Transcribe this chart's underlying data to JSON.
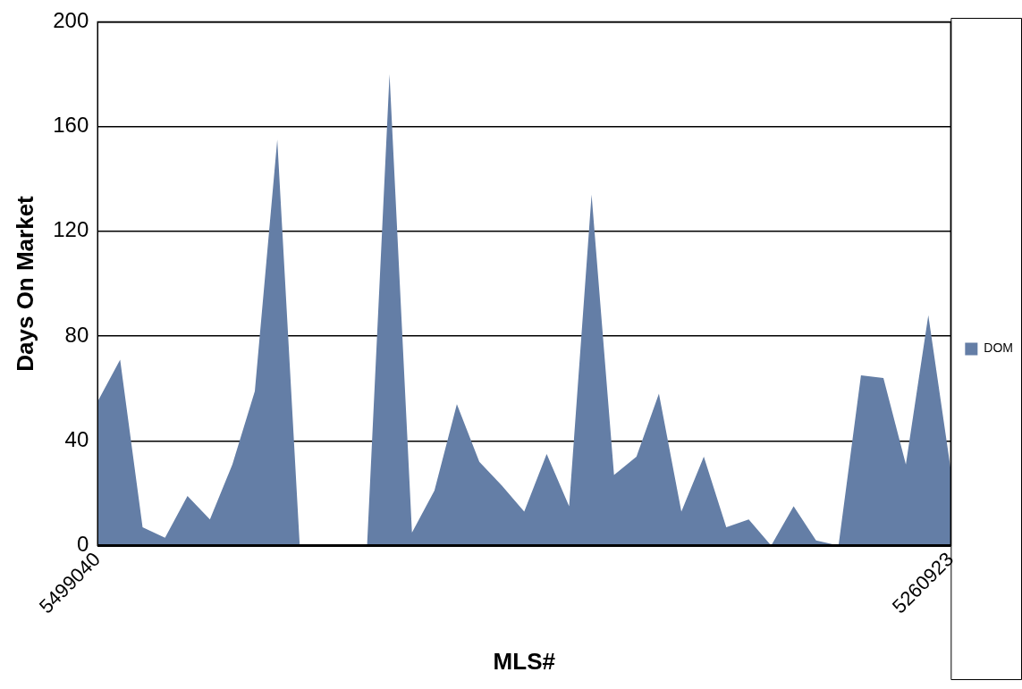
{
  "chart_data": {
    "type": "area",
    "xlabel": "MLS#",
    "ylabel": "Days On Market",
    "categories": [
      "5499040",
      null,
      null,
      null,
      null,
      null,
      null,
      null,
      null,
      null,
      null,
      null,
      null,
      null,
      null,
      null,
      null,
      null,
      null,
      null,
      null,
      null,
      null,
      null,
      null,
      null,
      null,
      null,
      null,
      null,
      null,
      null,
      null,
      null,
      null,
      null,
      null,
      null,
      "5260923"
    ],
    "series": [
      {
        "name": "DOM",
        "color": "#647ea6",
        "values": [
          55,
          71,
          7,
          3,
          19,
          10,
          31,
          59,
          155,
          0,
          0,
          0,
          0,
          180,
          5,
          21,
          54,
          32,
          23,
          13,
          35,
          15,
          134,
          27,
          34,
          58,
          13,
          34,
          7,
          10,
          0,
          15,
          2,
          0,
          65,
          64,
          31,
          88,
          29
        ]
      }
    ],
    "ylim": [
      0,
      200
    ],
    "yticks": [
      0,
      40,
      80,
      120,
      160,
      200
    ],
    "grid": "y",
    "legend": "right"
  }
}
